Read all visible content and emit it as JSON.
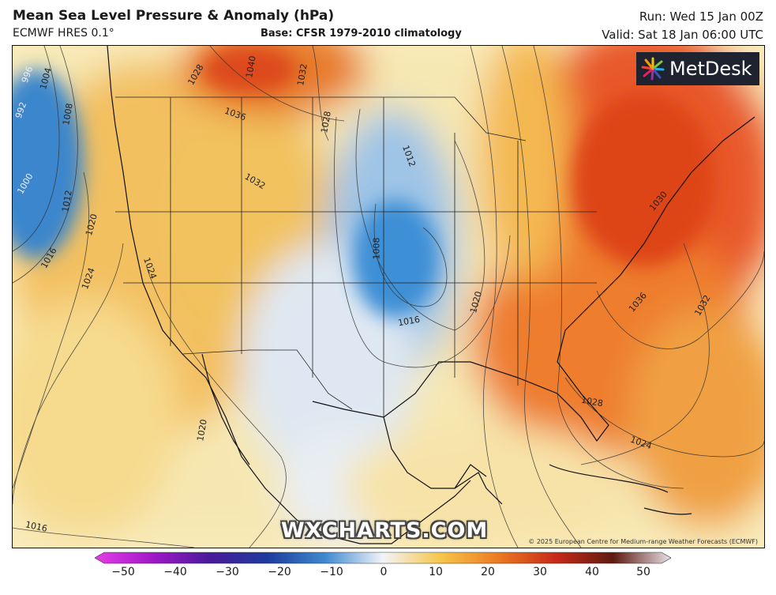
{
  "header": {
    "title": "Mean Sea Level Pressure & Anomaly (hPa)",
    "model": "ECMWF HRES 0.1°",
    "base": "Base: CFSR 1979-2010 climatology",
    "run": "Run: Wed 15 Jan 00Z",
    "valid": "Valid: Sat 18 Jan 06:00 UTC"
  },
  "logo": {
    "text": "MetDesk"
  },
  "watermark": "WXCHARTS.COM",
  "copyright": "© 2025 European Centre for Medium-range Weather Forecasts (ECMWF)",
  "isobar_labels": [
    "996",
    "992",
    "1004",
    "1008",
    "1000",
    "1012",
    "1020",
    "1016",
    "1024",
    "1028",
    "1040",
    "1032",
    "1036",
    "1032",
    "1028",
    "1012",
    "1008",
    "1016",
    "1020",
    "1024",
    "1020",
    "1016",
    "1030",
    "1036",
    "1032",
    "1028",
    "1024"
  ],
  "colorbar": {
    "ticks": [
      "−50",
      "−40",
      "−30",
      "−20",
      "−10",
      "0",
      "10",
      "20",
      "30",
      "40",
      "50"
    ],
    "colors": [
      "#d41fd4",
      "#8a14c8",
      "#3b1a96",
      "#1f3fa0",
      "#3f8ad0",
      "#dbe8f5",
      "#f7c64a",
      "#ec7a22",
      "#c72a18",
      "#6e2010",
      "#c8c0c8"
    ]
  },
  "colors": {
    "high_anomaly": "#e8531c",
    "low_anomaly": "#3f88cc",
    "neutral": "#f6efd6"
  }
}
